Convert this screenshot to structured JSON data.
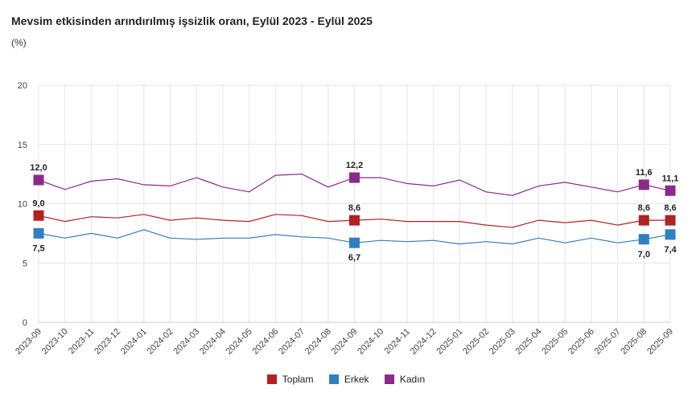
{
  "chart_data": {
    "type": "line",
    "title": "Mevsim etkisinden arındırılmış işsizlik oranı, Eylül 2023 - Eylül 2025",
    "subtitle": "(%)",
    "xlabel": "",
    "ylabel": "",
    "ylim": [
      0,
      20
    ],
    "yticks": [
      "0",
      "5",
      "10",
      "15",
      "20"
    ],
    "grid": true,
    "legend_position": "bottom-center",
    "categories": [
      "2023-09",
      "2023-10",
      "2023-11",
      "2023-12",
      "2024-01",
      "2024-02",
      "2024-03",
      "2024-04",
      "2024-05",
      "2024-06",
      "2024-07",
      "2024-08",
      "2024-09",
      "2024-10",
      "2024-11",
      "2024-12",
      "2025-01",
      "2025-02",
      "2025-03",
      "2025-04",
      "2025-05",
      "2025-06",
      "2025-07",
      "2025-08",
      "2025-09"
    ],
    "series": [
      {
        "name": "Toplam",
        "color": "#b22222",
        "values": [
          9.0,
          8.5,
          8.9,
          8.8,
          9.1,
          8.6,
          8.8,
          8.6,
          8.5,
          9.1,
          9.0,
          8.5,
          8.6,
          8.7,
          8.5,
          8.5,
          8.5,
          8.2,
          8.0,
          8.6,
          8.4,
          8.6,
          8.2,
          8.6,
          8.6
        ]
      },
      {
        "name": "Erkek",
        "color": "#2f7fc1",
        "values": [
          7.5,
          7.1,
          7.5,
          7.1,
          7.8,
          7.1,
          7.0,
          7.1,
          7.1,
          7.4,
          7.2,
          7.1,
          6.7,
          6.9,
          6.8,
          6.9,
          6.6,
          6.8,
          6.6,
          7.1,
          6.7,
          7.1,
          6.7,
          7.0,
          7.4
        ]
      },
      {
        "name": "Kadın",
        "color": "#8b2a8b",
        "values": [
          12.0,
          11.2,
          11.9,
          12.1,
          11.6,
          11.5,
          12.2,
          11.4,
          11.0,
          12.4,
          12.5,
          11.4,
          12.2,
          12.2,
          11.7,
          11.5,
          12.0,
          11.0,
          10.7,
          11.5,
          11.8,
          11.4,
          11.0,
          11.6,
          11.1
        ]
      }
    ],
    "annotations": [
      {
        "series": "Kadın",
        "index": 0,
        "label": "12,0",
        "pos": "above"
      },
      {
        "series": "Toplam",
        "index": 0,
        "label": "9,0",
        "pos": "above"
      },
      {
        "series": "Erkek",
        "index": 0,
        "label": "7,5",
        "pos": "below"
      },
      {
        "series": "Kadın",
        "index": 12,
        "label": "12,2",
        "pos": "above"
      },
      {
        "series": "Toplam",
        "index": 12,
        "label": "8,6",
        "pos": "above"
      },
      {
        "series": "Erkek",
        "index": 12,
        "label": "6,7",
        "pos": "below"
      },
      {
        "series": "Kadın",
        "index": 23,
        "label": "11,6",
        "pos": "above"
      },
      {
        "series": "Toplam",
        "index": 23,
        "label": "8,6",
        "pos": "above"
      },
      {
        "series": "Erkek",
        "index": 23,
        "label": "7,0",
        "pos": "below"
      },
      {
        "series": "Kadın",
        "index": 24,
        "label": "11,1",
        "pos": "above"
      },
      {
        "series": "Toplam",
        "index": 24,
        "label": "8,6",
        "pos": "above"
      },
      {
        "series": "Erkek",
        "index": 24,
        "label": "7,4",
        "pos": "below"
      }
    ]
  }
}
